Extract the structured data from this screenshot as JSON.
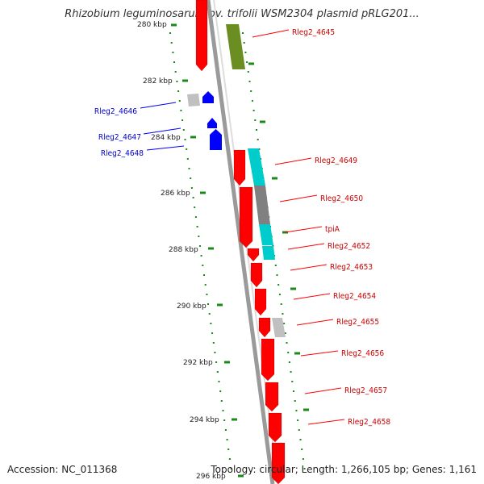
{
  "title": "Rhizobium leguminosarum bv. trifolii WSM2304 plasmid pRLG201...",
  "footer": {
    "accession": "Accession: NC_011368",
    "topology": "Topology: circular; Length: 1,266,105 bp; Genes: 1,161"
  },
  "colors": {
    "forward_gene": "#ff0000",
    "reverse_gene": "#0000ff",
    "ticks": "#1a8a1a",
    "olive": "#6b8e23",
    "cyan": "#00cccc",
    "gray": "#808080",
    "light_gray": "#c0c0c0"
  },
  "kbp_ticks": [
    "280 kbp",
    "282 kbp",
    "284 kbp",
    "286 kbp",
    "288 kbp",
    "290 kbp",
    "292 kbp",
    "294 kbp",
    "296 kbp"
  ],
  "genes": [
    {
      "label": "Rleg2_4645",
      "strand": "forward"
    },
    {
      "label": "Rleg2_4646",
      "strand": "reverse"
    },
    {
      "label": "Rleg2_4647",
      "strand": "reverse"
    },
    {
      "label": "Rleg2_4648",
      "strand": "reverse"
    },
    {
      "label": "Rleg2_4649",
      "strand": "forward"
    },
    {
      "label": "Rleg2_4650",
      "strand": "forward"
    },
    {
      "label": "tpiA",
      "strand": "forward"
    },
    {
      "label": "Rleg2_4652",
      "strand": "forward"
    },
    {
      "label": "Rleg2_4653",
      "strand": "forward"
    },
    {
      "label": "Rleg2_4654",
      "strand": "forward"
    },
    {
      "label": "Rleg2_4655",
      "strand": "forward"
    },
    {
      "label": "Rleg2_4656",
      "strand": "forward"
    },
    {
      "label": "Rleg2_4657",
      "strand": "forward"
    },
    {
      "label": "Rleg2_4658",
      "strand": "forward"
    }
  ]
}
